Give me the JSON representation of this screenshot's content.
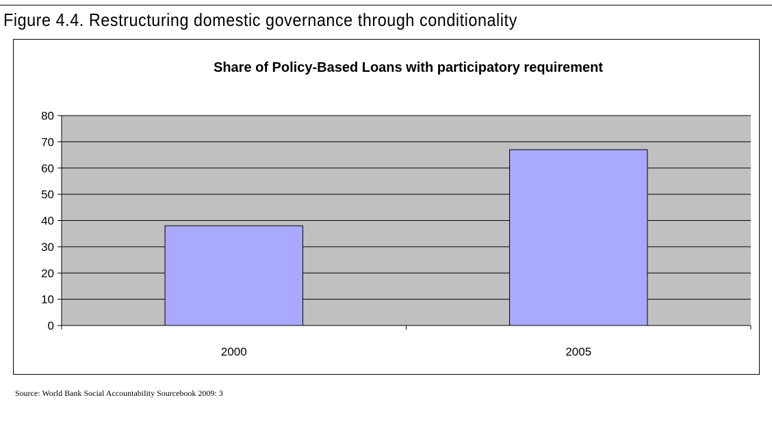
{
  "figure": {
    "caption": "Figure 4.4. Restructuring domestic governance through conditionality",
    "source": "Source: World Bank Social Accountability Sourcebook 2009: 3"
  },
  "chart_data": {
    "type": "bar",
    "title": "Share of Policy-Based Loans with participatory requirement",
    "xlabel": "",
    "ylabel": "",
    "categories": [
      "2000",
      "2005"
    ],
    "values": [
      38,
      67
    ],
    "ylim": [
      0,
      80
    ],
    "yticks": [
      0,
      10,
      20,
      30,
      40,
      50,
      60,
      70,
      80
    ],
    "grid": true,
    "legend": "none",
    "colors": {
      "plot_background": "#c0c0c0",
      "bar_fill": "#a9a9ff",
      "bar_stroke": "#000000",
      "grid": "#000000",
      "axis": "#000000"
    }
  }
}
